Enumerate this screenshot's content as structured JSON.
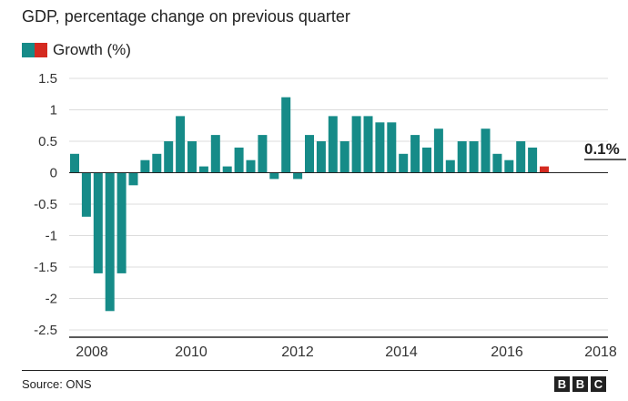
{
  "chart_data": {
    "type": "bar",
    "title": "GDP, percentage change on previous quarter",
    "series": [
      {
        "name": "Growth (%)",
        "values": [
          0.3,
          -0.7,
          -1.6,
          -2.2,
          -1.6,
          -0.2,
          0.2,
          0.3,
          0.5,
          0.9,
          0.5,
          0.1,
          0.6,
          0.1,
          0.4,
          0.2,
          0.6,
          -0.1,
          1.2,
          -0.1,
          0.6,
          0.5,
          0.9,
          0.5,
          0.9,
          0.9,
          0.8,
          0.8,
          0.3,
          0.6,
          0.4,
          0.7,
          0.2,
          0.5,
          0.5,
          0.7,
          0.3,
          0.2,
          0.5,
          0.4,
          0.1
        ]
      }
    ],
    "x_tick_labels": [
      "2008",
      "2010",
      "2012",
      "2014",
      "2016",
      "2018"
    ],
    "y_tick_labels": [
      "1.5",
      "1",
      "0.5",
      "0",
      "-0.5",
      "-1",
      "-1.5",
      "-2",
      "-2.5"
    ],
    "ylim": [
      -2.5,
      1.5
    ],
    "grid": true,
    "legend_position": "top-left",
    "annotation": "0.1%",
    "colors": {
      "bar": "#168b88",
      "latest_bar": "#d42a20",
      "grid": "#dcdcdc",
      "axis": "#222222"
    }
  },
  "footer": {
    "source": "Source: ONS",
    "logo": [
      "B",
      "B",
      "C"
    ]
  }
}
